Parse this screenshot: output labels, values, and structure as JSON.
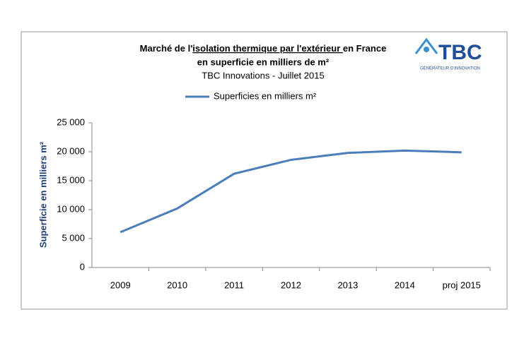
{
  "chart_data": {
    "type": "line",
    "title_parts": [
      "Marché de l'",
      "isolation  thermique par l'extérieur ",
      "en France"
    ],
    "title_line2": "en superficie  en milliers de m²",
    "subtitle": "TBC Innovations - Juillet 2015",
    "y_label": "Superficie en milliers m²",
    "logo": {
      "text": "TBC",
      "tagline": "GÉNÉRATEUR D'INNOVATION"
    },
    "categories": [
      "2009",
      "2010",
      "2011",
      "2012",
      "2013",
      "2014",
      "proj 2015"
    ],
    "series": [
      {
        "name": "Superficies en milliers m²",
        "color": "#4a7ebb",
        "values": [
          6100,
          10200,
          16200,
          18600,
          19800,
          20200,
          19900
        ]
      }
    ],
    "ylim": [
      0,
      25000
    ],
    "yticks": [
      0,
      {
        "value": 5000,
        "label": "5 000"
      },
      {
        "value": 10000,
        "label": "10 000"
      },
      {
        "value": 15000,
        "label": "15 000"
      },
      {
        "value": 20000,
        "label": "20 000"
      },
      {
        "value": 25000,
        "label": "25 000"
      }
    ],
    "legend": "top"
  }
}
